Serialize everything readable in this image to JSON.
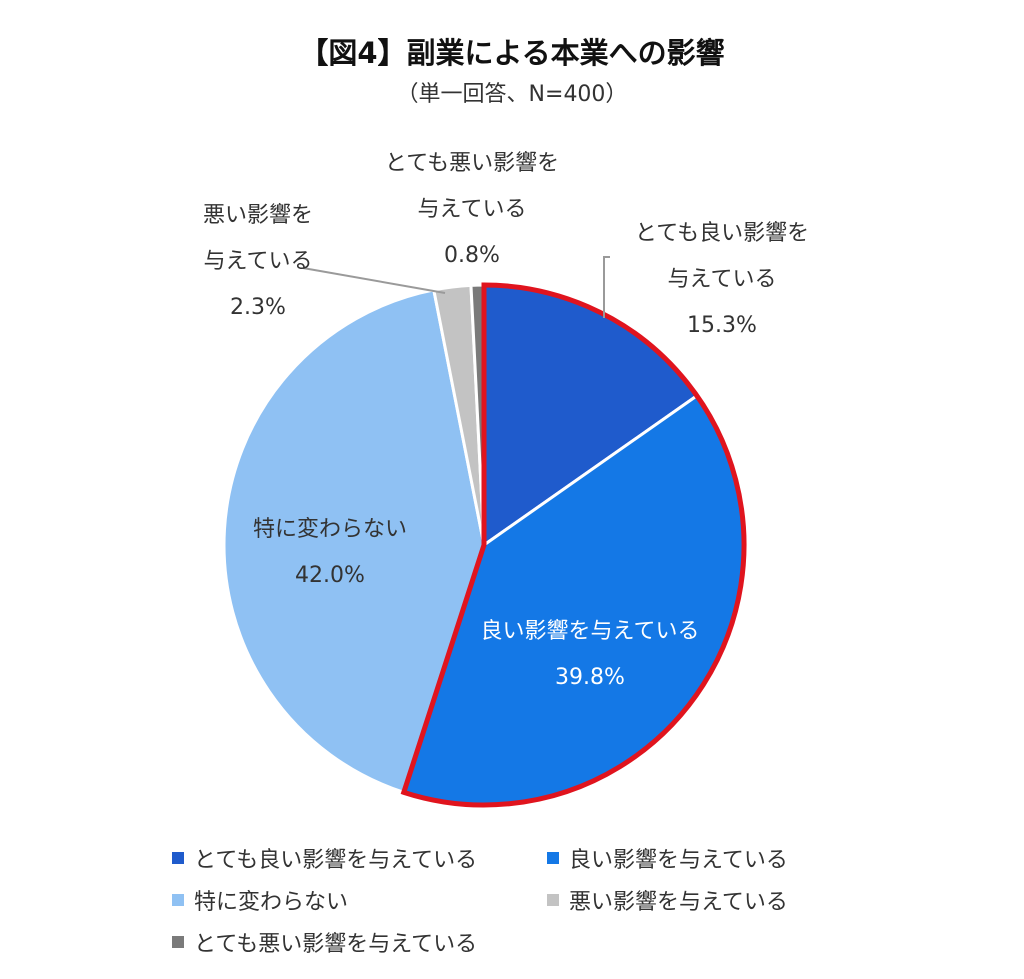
{
  "title": "【図4】副業による本業への影響",
  "subtitle": "（単一回答、N=400）",
  "chart_data": {
    "type": "pie",
    "title": "【図4】副業による本業への影響",
    "subtitle": "（単一回答、N=400）",
    "slices": [
      {
        "label": "とても良い影響を与えている",
        "label_lines": [
          "とても良い影響を",
          "与えている"
        ],
        "value": 15.3,
        "value_label": "15.3%",
        "color": "#1f5bcc",
        "highlighted": true
      },
      {
        "label": "良い影響を与えている",
        "label_lines": [
          "良い影響を与えている"
        ],
        "value": 39.8,
        "value_label": "39.8%",
        "color": "#1478e6",
        "highlighted": true
      },
      {
        "label": "特に変わらない",
        "label_lines": [
          "特に変わらない"
        ],
        "value": 42.0,
        "value_label": "42.0%",
        "color": "#8fc1f3",
        "highlighted": false
      },
      {
        "label": "悪い影響を与えている",
        "label_lines": [
          "悪い影響を",
          "与えている"
        ],
        "value": 2.3,
        "value_label": "2.3%",
        "color": "#c3c3c3",
        "highlighted": false
      },
      {
        "label": "とても悪い影響を与えている",
        "label_lines": [
          "とても悪い影響を",
          "与えている"
        ],
        "value": 0.8,
        "value_label": "0.8%",
        "color": "#7a7a7a",
        "highlighted": false
      }
    ],
    "start_angle": "12 o'clock",
    "direction": "clockwise",
    "highlight_color": "#e0141e",
    "legend_position": "bottom"
  },
  "legend": [
    {
      "label": "とても良い影響を与えている",
      "color": "#1f5bcc"
    },
    {
      "label": "良い影響を与えている",
      "color": "#1478e6"
    },
    {
      "label": "特に変わらない",
      "color": "#8fc1f3"
    },
    {
      "label": "悪い影響を与えている",
      "color": "#c3c3c3"
    },
    {
      "label": "とても悪い影響を与えている",
      "color": "#7a7a7a"
    }
  ]
}
